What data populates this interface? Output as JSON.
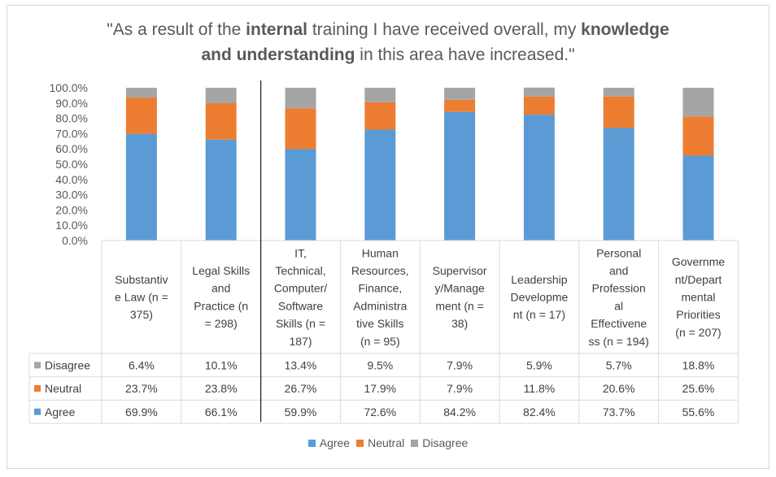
{
  "title": {
    "parts": [
      {
        "t": "\"As a result of the ",
        "b": false
      },
      {
        "t": "internal",
        "b": true
      },
      {
        "t": " training I have received overall, my ",
        "b": false
      },
      {
        "t": "knowledge",
        "b": true
      },
      {
        "br": true
      },
      {
        "t": "and understanding",
        "b": true
      },
      {
        "t": " in this area have increased.\"",
        "b": false
      }
    ]
  },
  "colors": {
    "Agree": "#5b9bd5",
    "Neutral": "#ed7d31",
    "Disagree": "#a5a5a5"
  },
  "chart_data": {
    "type": "bar",
    "stacked": "percent",
    "ylim": [
      0,
      100
    ],
    "yticks": [
      "0.0%",
      "10.0%",
      "20.0%",
      "30.0%",
      "40.0%",
      "50.0%",
      "60.0%",
      "70.0%",
      "80.0%",
      "90.0%",
      "100.0%"
    ],
    "categories": [
      "Substantive Law (n = 375)",
      "Legal Skills and Practice (n = 298)",
      "IT, Technical, Computer/ Software Skills (n = 187)",
      "Human Resources, Finance, Administrative Skills (n = 95)",
      "Supervisory/Management (n = 38)",
      "Leadership Development (n = 17)",
      "Personal and Professional Effectiveness (n = 194)",
      "Government/Departmental Priorities (n = 207)"
    ],
    "category_lines": [
      [
        "Substantiv",
        "e Law (n =",
        "375)"
      ],
      [
        "Legal Skills",
        "and",
        "Practice (n",
        "= 298)"
      ],
      [
        "IT,",
        "Technical,",
        "Computer/",
        "Software",
        "Skills (n =",
        "187)"
      ],
      [
        "Human",
        "Resources,",
        "Finance,",
        "Administra",
        "tive Skills",
        "(n = 95)"
      ],
      [
        "Supervisor",
        "y/Manage",
        "ment (n =",
        "38)"
      ],
      [
        "Leadership",
        "Developme",
        "nt (n = 17)"
      ],
      [
        "Personal",
        "and",
        "Profession",
        "al",
        "Effectivene",
        "ss (n = 194)"
      ],
      [
        "Governme",
        "nt/Depart",
        "mental",
        "Priorities",
        "(n = 207)"
      ]
    ],
    "series": [
      {
        "name": "Agree",
        "values": [
          69.9,
          66.1,
          59.9,
          72.6,
          84.2,
          82.4,
          73.7,
          55.6
        ],
        "labels": [
          "69.9%",
          "66.1%",
          "59.9%",
          "72.6%",
          "84.2%",
          "82.4%",
          "73.7%",
          "55.6%"
        ]
      },
      {
        "name": "Neutral",
        "values": [
          23.7,
          23.8,
          26.7,
          17.9,
          7.9,
          11.8,
          20.6,
          25.6
        ],
        "labels": [
          "23.7%",
          "23.8%",
          "26.7%",
          "17.9%",
          "7.9%",
          "11.8%",
          "20.6%",
          "25.6%"
        ]
      },
      {
        "name": "Disagree",
        "values": [
          6.4,
          10.1,
          13.4,
          9.5,
          7.9,
          5.9,
          5.7,
          18.8
        ],
        "labels": [
          "6.4%",
          "10.1%",
          "13.4%",
          "9.5%",
          "7.9%",
          "5.9%",
          "5.7%",
          "18.8%"
        ]
      }
    ],
    "table_row_order": [
      "Disagree",
      "Neutral",
      "Agree"
    ],
    "legend": [
      "Agree",
      "Neutral",
      "Disagree"
    ],
    "legend_position": "bottom",
    "grid": false
  }
}
